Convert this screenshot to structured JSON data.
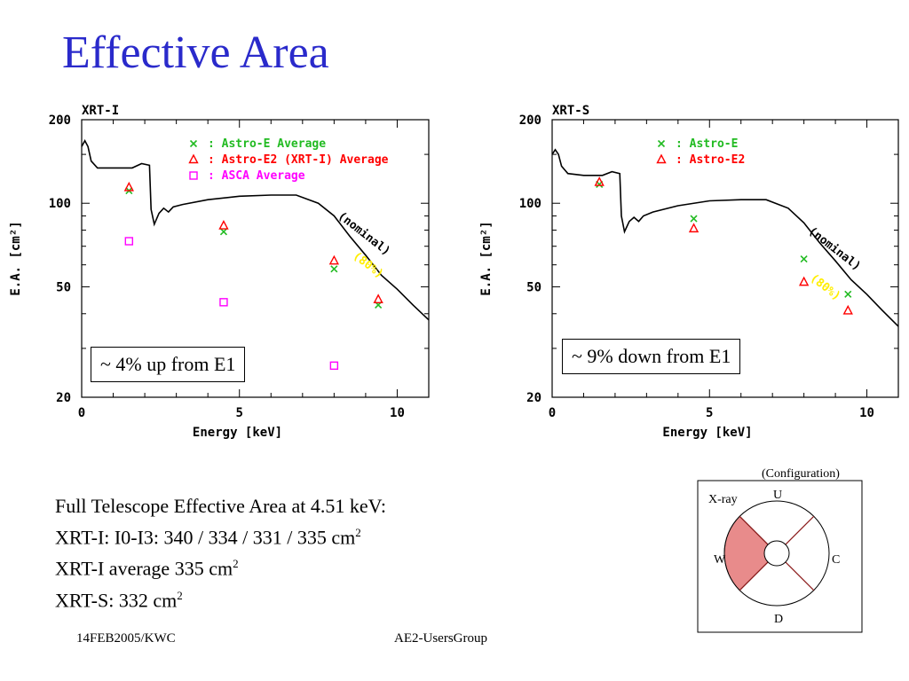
{
  "title": "Effective Area",
  "chart_data": [
    {
      "type": "scatter",
      "panel_title": "XRT-I",
      "xlabel": "Energy [keV]",
      "ylabel": "E.A. [cm²]",
      "xlim": [
        0,
        11
      ],
      "ylim": [
        20,
        200
      ],
      "yscale": "log",
      "xticks": [
        0,
        5,
        10
      ],
      "yticks": [
        20,
        50,
        100,
        200
      ],
      "curve_labels": [
        "(nominal)",
        "(80%)"
      ],
      "nominal_curve": [
        [
          0,
          160
        ],
        [
          0.1,
          168
        ],
        [
          0.2,
          160
        ],
        [
          0.3,
          142
        ],
        [
          0.5,
          134
        ],
        [
          1,
          134
        ],
        [
          1.6,
          134
        ],
        [
          1.9,
          139
        ],
        [
          2.15,
          137
        ],
        [
          2.2,
          95
        ],
        [
          2.3,
          84
        ],
        [
          2.45,
          92
        ],
        [
          2.6,
          96
        ],
        [
          2.75,
          93
        ],
        [
          2.9,
          97
        ],
        [
          3.2,
          99
        ],
        [
          4,
          103
        ],
        [
          5,
          106
        ],
        [
          6,
          107
        ],
        [
          6.8,
          107
        ],
        [
          7.5,
          100
        ],
        [
          8,
          90
        ],
        [
          8.5,
          76
        ],
        [
          9,
          65
        ],
        [
          9.5,
          55
        ],
        [
          10,
          49
        ],
        [
          10.5,
          43
        ],
        [
          11,
          38
        ]
      ],
      "series": [
        {
          "name": ": Astro-E Average",
          "marker": "x",
          "color": "#22bb22",
          "points": [
            [
              1.5,
              111
            ],
            [
              4.5,
              79
            ],
            [
              8,
              58
            ],
            [
              9.4,
              43
            ]
          ]
        },
        {
          "name": ": Astro-E2 (XRT-I) Average",
          "marker": "triangle",
          "color": "#ff0000",
          "points": [
            [
              1.5,
              114
            ],
            [
              4.5,
              83
            ],
            [
              8,
              62
            ],
            [
              9.4,
              45
            ]
          ]
        },
        {
          "name": ": ASCA Average",
          "marker": "square",
          "color": "#ff00ff",
          "points": [
            [
              1.5,
              73
            ],
            [
              4.5,
              44
            ],
            [
              8,
              26
            ]
          ]
        }
      ],
      "annotation": "~ 4% up from E1"
    },
    {
      "type": "scatter",
      "panel_title": "XRT-S",
      "xlabel": "Energy [keV]",
      "ylabel": "E.A. [cm²]",
      "xlim": [
        0,
        11
      ],
      "ylim": [
        20,
        200
      ],
      "yscale": "log",
      "xticks": [
        0,
        5,
        10
      ],
      "yticks": [
        20,
        50,
        100,
        200
      ],
      "curve_labels": [
        "(nominal)",
        "(80%)"
      ],
      "nominal_curve": [
        [
          0,
          150
        ],
        [
          0.1,
          156
        ],
        [
          0.2,
          150
        ],
        [
          0.3,
          136
        ],
        [
          0.5,
          128
        ],
        [
          1,
          126
        ],
        [
          1.6,
          126
        ],
        [
          1.9,
          130
        ],
        [
          2.15,
          128
        ],
        [
          2.2,
          90
        ],
        [
          2.3,
          79
        ],
        [
          2.45,
          86
        ],
        [
          2.6,
          89
        ],
        [
          2.75,
          86
        ],
        [
          2.9,
          90
        ],
        [
          3.2,
          93
        ],
        [
          4,
          98
        ],
        [
          5,
          102
        ],
        [
          6,
          103
        ],
        [
          6.8,
          103
        ],
        [
          7.5,
          96
        ],
        [
          8,
          85
        ],
        [
          8.5,
          72
        ],
        [
          9,
          62
        ],
        [
          9.5,
          53
        ],
        [
          10,
          47
        ],
        [
          10.5,
          41
        ],
        [
          11,
          36
        ]
      ],
      "series": [
        {
          "name": ": Astro-E",
          "marker": "x",
          "color": "#22bb22",
          "points": [
            [
              1.5,
              117
            ],
            [
              4.5,
              88
            ],
            [
              8,
              63
            ],
            [
              9.4,
              47
            ]
          ]
        },
        {
          "name": ": Astro-E2",
          "marker": "triangle",
          "color": "#ff0000",
          "points": [
            [
              1.5,
              119
            ],
            [
              4.5,
              81
            ],
            [
              8,
              52
            ],
            [
              9.4,
              41
            ]
          ]
        }
      ],
      "annotation": "~ 9% down from E1"
    }
  ],
  "stats": {
    "line1": "Full Telescope Effective Area at 4.51 keV:",
    "line2_text": "XRT-I: I0-I3: 340 / 334 / 331 / 335 cm",
    "line3_text": "XRT-I average 335 cm",
    "line4_text": "XRT-S: 332 cm",
    "superscript": "2"
  },
  "diagram": {
    "caption": "(Configuration)",
    "label_xray": "X-ray",
    "label_u": "U",
    "label_w": "W",
    "label_c": "C",
    "label_d": "D",
    "highlight_color": "#e88b8b"
  },
  "footer": {
    "left": "14FEB2005/KWC",
    "center": "AE2-UsersGroup"
  }
}
